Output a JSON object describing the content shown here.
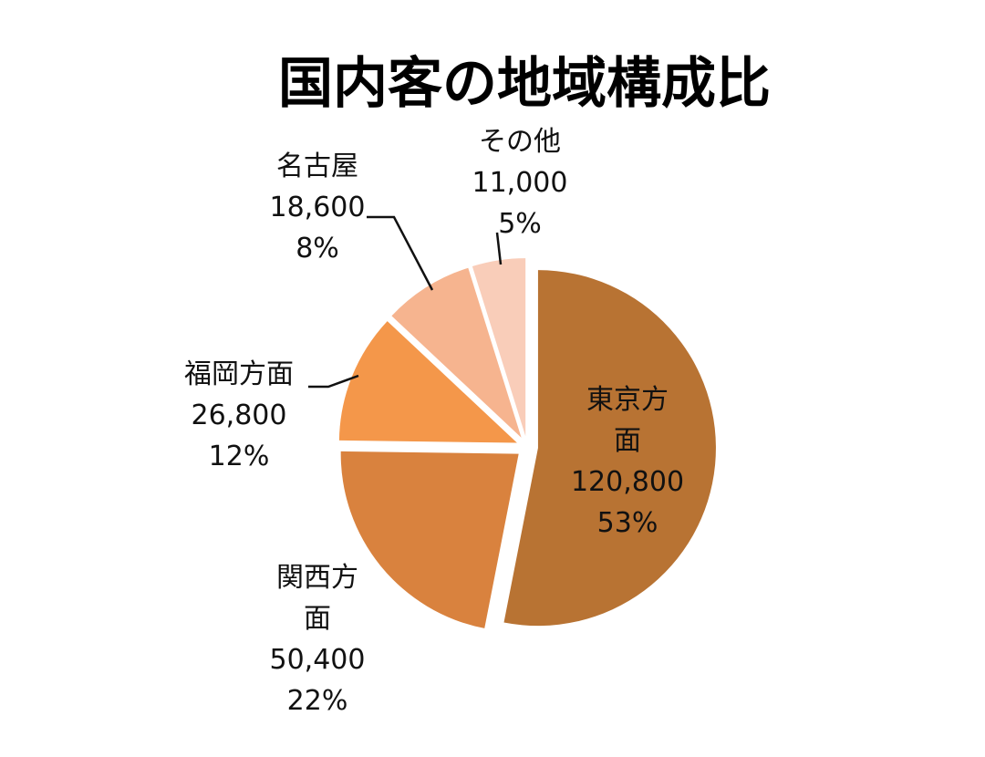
{
  "chart_data": {
    "type": "pie",
    "title": "国内客の地域構成比",
    "slices": [
      {
        "name": "東京方面",
        "value": 120800,
        "value_label": "120,800",
        "percent_label": "53%",
        "color": "#b87333"
      },
      {
        "name": "関西方面",
        "value": 50400,
        "value_label": "50,400",
        "percent_label": "22%",
        "color": "#d9823e"
      },
      {
        "name": "福岡方面",
        "value": 26800,
        "value_label": "26,800",
        "percent_label": "12%",
        "color": "#f4974a"
      },
      {
        "name": "名古屋",
        "value": 18600,
        "value_label": "18,600",
        "percent_label": "8%",
        "color": "#f6b48f"
      },
      {
        "name": "その他",
        "value": 11000,
        "value_label": "11,000",
        "percent_label": "5%",
        "color": "#f9cdb9"
      }
    ],
    "exploded": true,
    "legend": "none"
  }
}
